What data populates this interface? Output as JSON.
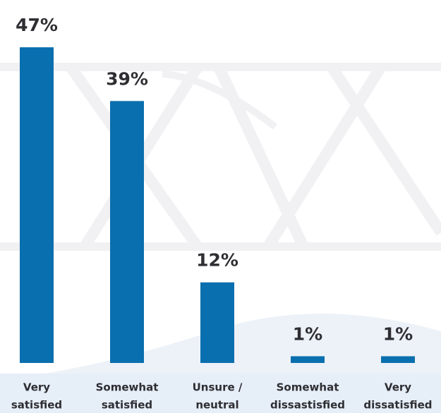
{
  "chart_data": {
    "type": "bar",
    "categories": [
      [
        "Very",
        "satisfied"
      ],
      [
        "Somewhat",
        "satisfied"
      ],
      [
        "Unsure /",
        "neutral"
      ],
      [
        "Somewhat",
        "dissastisfied"
      ],
      [
        "Very",
        "dissatisfied"
      ]
    ],
    "values": [
      47,
      39,
      12,
      1,
      1
    ],
    "value_labels": [
      "47%",
      "39%",
      "12%",
      "1%",
      "1%"
    ],
    "color": "#0a6fae"
  }
}
